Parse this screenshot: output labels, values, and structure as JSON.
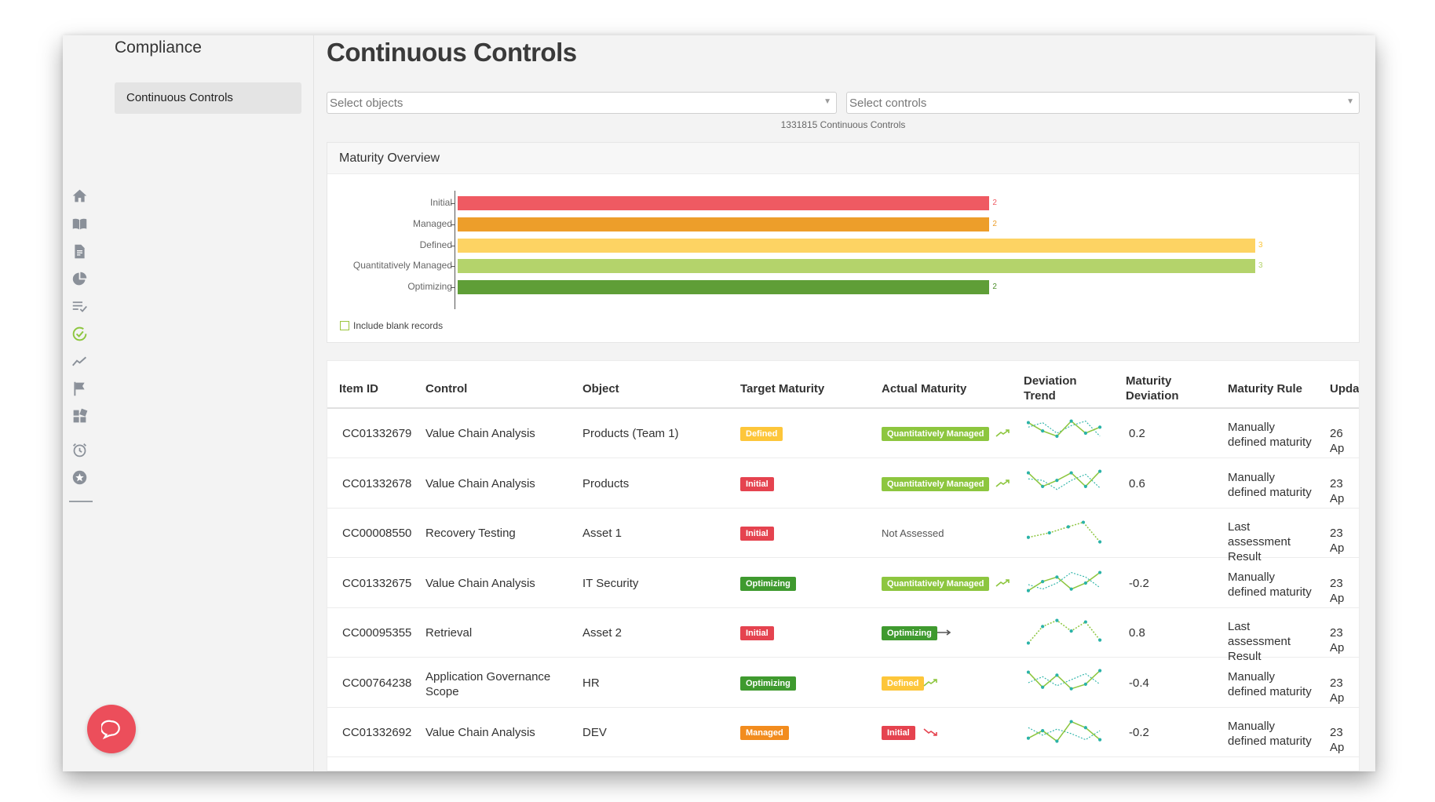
{
  "sidebar": {
    "title": "Compliance",
    "items": [
      {
        "label": "Continuous Controls"
      }
    ]
  },
  "nav_icons": [
    "home-icon",
    "book-icon",
    "document-icon",
    "pie-chart-icon",
    "checklist-icon",
    "compliance-check-icon",
    "trend-icon",
    "flag-icon",
    "dashboard-icon",
    "alarm-icon",
    "star-icon"
  ],
  "page": {
    "title": "Continuous Controls"
  },
  "filters": {
    "objects_placeholder": "Select objects",
    "controls_placeholder": "Select controls"
  },
  "count_text": "1331815 Continuous Controls",
  "maturity_panel": {
    "title": "Maturity Overview",
    "include_blank_label": "Include blank records"
  },
  "chart_data": {
    "type": "bar",
    "orientation": "horizontal",
    "title": "Maturity Overview",
    "categories": [
      "Initial",
      "Managed",
      "Defined",
      "Quantitatively Managed",
      "Optimizing"
    ],
    "values": [
      2,
      2,
      3,
      3,
      2
    ],
    "colors": [
      "#ef5a62",
      "#ed9e2a",
      "#fdd363",
      "#b4d36b",
      "#5f9e37"
    ],
    "xlim": [
      0,
      3
    ],
    "grid": false
  },
  "table": {
    "headers": [
      "Item ID",
      "Control",
      "Object",
      "Target Maturity",
      "Actual Maturity",
      "Deviation Trend",
      "Maturity Deviation",
      "Maturity Rule",
      "Upda"
    ],
    "rows": [
      {
        "id": "CC01332679",
        "control": "Value Chain Analysis",
        "object": "Products (Team 1)",
        "target": "Defined",
        "actual": "Quantitatively Managed",
        "trend": "up",
        "deviation": "0.2",
        "rule": "Manually defined maturity",
        "updated": "26 Ap"
      },
      {
        "id": "CC01332678",
        "control": "Value Chain Analysis",
        "object": "Products",
        "target": "Initial",
        "actual": "Quantitatively Managed",
        "trend": "up",
        "deviation": "0.6",
        "rule": "Manually defined maturity",
        "updated": "23 Ap"
      },
      {
        "id": "CC00008550",
        "control": "Recovery Testing",
        "object": "Asset 1",
        "target": "Initial",
        "actual": "Not Assessed",
        "trend": "",
        "deviation": "",
        "rule": "Last assessment Result",
        "updated": "23 Ap"
      },
      {
        "id": "CC01332675",
        "control": "Value Chain Analysis",
        "object": "IT Security",
        "target": "Optimizing",
        "actual": "Quantitatively Managed",
        "trend": "up",
        "deviation": "-0.2",
        "rule": "Manually defined maturity",
        "updated": "23 Ap"
      },
      {
        "id": "CC00095355",
        "control": "Retrieval",
        "object": "Asset 2",
        "target": "Initial",
        "actual": "Optimizing",
        "trend": "flat",
        "deviation": "0.8",
        "rule": "Last assessment Result",
        "updated": "23 Ap"
      },
      {
        "id": "CC00764238",
        "control": "Application Governance Scope",
        "object": "HR",
        "target": "Optimizing",
        "actual": "Defined",
        "trend": "up",
        "deviation": "-0.4",
        "rule": "Manually defined maturity",
        "updated": "23 Ap"
      },
      {
        "id": "CC01332692",
        "control": "Value Chain Analysis",
        "object": "DEV",
        "target": "Managed",
        "actual": "Initial",
        "trend": "down",
        "deviation": "-0.2",
        "rule": "Manually defined maturity",
        "updated": "23 Ap"
      }
    ]
  }
}
